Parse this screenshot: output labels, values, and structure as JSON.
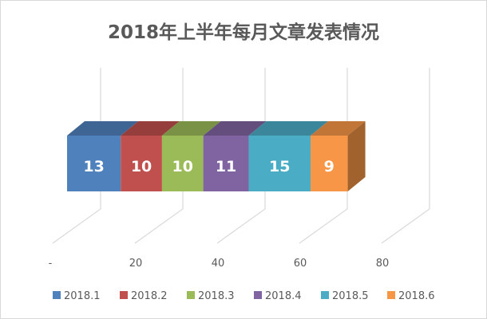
{
  "chart_data": {
    "type": "bar",
    "orientation": "horizontal",
    "stacked": true,
    "style": "3d",
    "title": "2018年上半年每月文章发表情况",
    "xlim": [
      0,
      80
    ],
    "x_ticks": [
      "-",
      "20",
      "40",
      "60",
      "80"
    ],
    "grid": true,
    "legend_position": "bottom",
    "series": [
      {
        "name": "2018.1",
        "value": 13,
        "color": "#4f81bd"
      },
      {
        "name": "2018.2",
        "value": 10,
        "color": "#c0504d"
      },
      {
        "name": "2018.3",
        "value": 10,
        "color": "#9bbb59"
      },
      {
        "name": "2018.4",
        "value": 11,
        "color": "#8064a2"
      },
      {
        "name": "2018.5",
        "value": 15,
        "color": "#4bacc6"
      },
      {
        "name": "2018.6",
        "value": 9,
        "color": "#f79646"
      }
    ]
  }
}
